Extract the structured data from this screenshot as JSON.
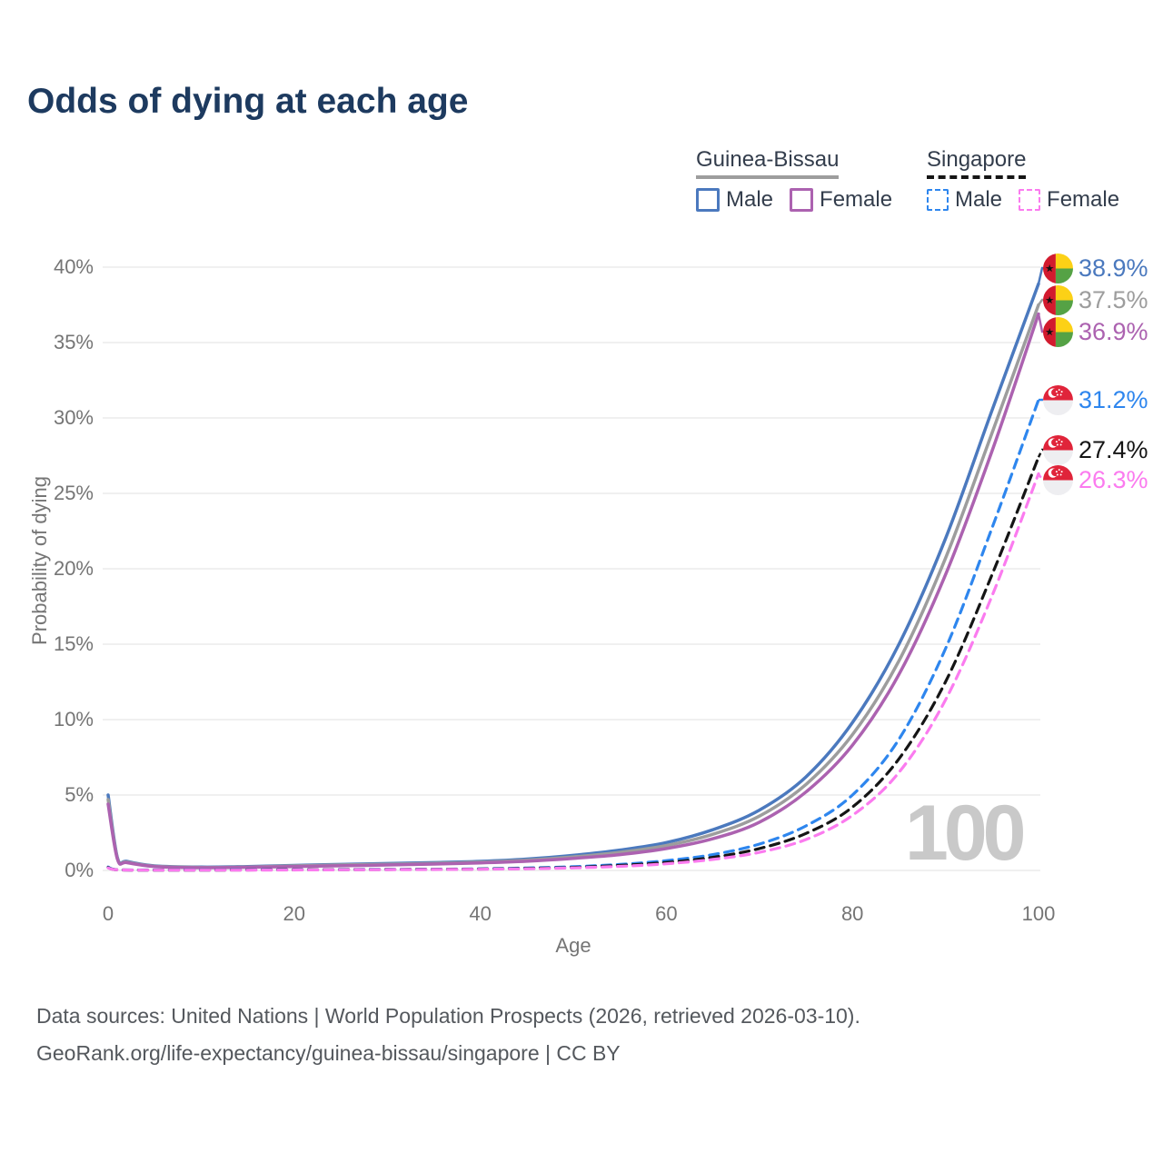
{
  "title": "Odds of dying at each age",
  "watermark": "100",
  "legend": {
    "groups": [
      {
        "label": "Guinea-Bissau",
        "style": "solid",
        "color": "#9d9d9d"
      },
      {
        "label": "Singapore",
        "style": "dashed",
        "color": "#151515"
      }
    ],
    "items": [
      {
        "label": "Male",
        "group": "Guinea-Bissau",
        "style": "solid",
        "color": "#4b79be"
      },
      {
        "label": "Female",
        "group": "Guinea-Bissau",
        "style": "solid",
        "color": "#ac62b0"
      },
      {
        "label": "Male",
        "group": "Singapore",
        "style": "dashed",
        "color": "#2e86ee"
      },
      {
        "label": "Female",
        "group": "Singapore",
        "style": "dashed",
        "color": "#fb7bef"
      }
    ]
  },
  "y_axis": {
    "title": "Probability of dying",
    "tick_labels": [
      "0%",
      "5%",
      "10%",
      "15%",
      "20%",
      "25%",
      "30%",
      "35%",
      "40%"
    ]
  },
  "x_axis": {
    "title": "Age",
    "tick_labels": [
      "0",
      "20",
      "40",
      "60",
      "80",
      "100"
    ]
  },
  "footer": {
    "line1": "Data sources: United Nations | World Population Prospects (2026, retrieved 2026-03-10).",
    "line2": "GeoRank.org/life-expectancy/guinea-bissau/singapore | CC BY"
  },
  "chart_data": {
    "type": "line",
    "title": "Odds of dying at each age",
    "xlabel": "Age",
    "ylabel": "Probability of dying",
    "xlim": [
      0,
      100
    ],
    "ylim_pct": [
      0,
      40
    ],
    "x_ticks": [
      0,
      20,
      40,
      60,
      80,
      100
    ],
    "y_ticks_pct": [
      0,
      5,
      10,
      15,
      20,
      25,
      30,
      35,
      40
    ],
    "grid": "horizontal-only",
    "legend_position": "top-right",
    "series": [
      {
        "id": "gb_male",
        "name": "Guinea-Bissau Male",
        "country": "Guinea-Bissau",
        "sex": "male",
        "style": "solid",
        "color": "#4b79be",
        "end_label": "38.9%",
        "end_value_pct": 38.9,
        "flag": "guinea-bissau-flag-icon",
        "points_age_pct": [
          [
            0,
            5.0
          ],
          [
            1,
            0.85
          ],
          [
            2,
            0.6
          ],
          [
            5,
            0.3
          ],
          [
            10,
            0.22
          ],
          [
            15,
            0.26
          ],
          [
            20,
            0.33
          ],
          [
            25,
            0.4
          ],
          [
            30,
            0.46
          ],
          [
            35,
            0.52
          ],
          [
            40,
            0.6
          ],
          [
            45,
            0.75
          ],
          [
            50,
            1.0
          ],
          [
            55,
            1.35
          ],
          [
            60,
            1.85
          ],
          [
            65,
            2.7
          ],
          [
            70,
            4.0
          ],
          [
            75,
            6.2
          ],
          [
            80,
            9.8
          ],
          [
            85,
            15.0
          ],
          [
            90,
            22.0
          ],
          [
            95,
            30.5
          ],
          [
            100,
            38.9
          ]
        ]
      },
      {
        "id": "gb_total",
        "name": "Guinea-Bissau",
        "country": "Guinea-Bissau",
        "sex": "both",
        "style": "solid",
        "color": "#9d9d9d",
        "end_label": "37.5%",
        "end_value_pct": 37.5,
        "flag": "guinea-bissau-flag-icon",
        "points_age_pct": [
          [
            0,
            4.7
          ],
          [
            1,
            0.8
          ],
          [
            2,
            0.56
          ],
          [
            5,
            0.28
          ],
          [
            10,
            0.2
          ],
          [
            15,
            0.23
          ],
          [
            20,
            0.3
          ],
          [
            25,
            0.36
          ],
          [
            30,
            0.41
          ],
          [
            35,
            0.47
          ],
          [
            40,
            0.55
          ],
          [
            45,
            0.68
          ],
          [
            50,
            0.9
          ],
          [
            55,
            1.2
          ],
          [
            60,
            1.65
          ],
          [
            65,
            2.4
          ],
          [
            70,
            3.6
          ],
          [
            75,
            5.7
          ],
          [
            80,
            9.0
          ],
          [
            85,
            13.9
          ],
          [
            90,
            20.7
          ],
          [
            95,
            29.0
          ],
          [
            100,
            37.5
          ]
        ]
      },
      {
        "id": "gb_female",
        "name": "Guinea-Bissau Female",
        "country": "Guinea-Bissau",
        "sex": "female",
        "style": "solid",
        "color": "#ac62b0",
        "end_label": "36.9%",
        "end_value_pct": 36.9,
        "flag": "guinea-bissau-flag-icon",
        "points_age_pct": [
          [
            0,
            4.4
          ],
          [
            1,
            0.75
          ],
          [
            2,
            0.52
          ],
          [
            5,
            0.26
          ],
          [
            10,
            0.18
          ],
          [
            15,
            0.21
          ],
          [
            20,
            0.26
          ],
          [
            25,
            0.31
          ],
          [
            30,
            0.36
          ],
          [
            35,
            0.42
          ],
          [
            40,
            0.5
          ],
          [
            45,
            0.61
          ],
          [
            50,
            0.8
          ],
          [
            55,
            1.05
          ],
          [
            60,
            1.45
          ],
          [
            65,
            2.1
          ],
          [
            70,
            3.2
          ],
          [
            75,
            5.2
          ],
          [
            80,
            8.3
          ],
          [
            85,
            13.0
          ],
          [
            90,
            19.6
          ],
          [
            95,
            27.8
          ],
          [
            100,
            36.9
          ]
        ]
      },
      {
        "id": "sg_male",
        "name": "Singapore Male",
        "country": "Singapore",
        "sex": "male",
        "style": "dashed",
        "color": "#2e86ee",
        "end_label": "31.2%",
        "end_value_pct": 31.2,
        "flag": "singapore-flag-icon",
        "points_age_pct": [
          [
            0,
            0.22
          ],
          [
            1,
            0.05
          ],
          [
            5,
            0.03
          ],
          [
            10,
            0.03
          ],
          [
            15,
            0.04
          ],
          [
            20,
            0.05
          ],
          [
            25,
            0.06
          ],
          [
            30,
            0.07
          ],
          [
            35,
            0.08
          ],
          [
            40,
            0.11
          ],
          [
            45,
            0.16
          ],
          [
            50,
            0.25
          ],
          [
            55,
            0.4
          ],
          [
            60,
            0.65
          ],
          [
            65,
            1.05
          ],
          [
            70,
            1.75
          ],
          [
            75,
            2.95
          ],
          [
            80,
            5.0
          ],
          [
            85,
            8.7
          ],
          [
            90,
            14.7
          ],
          [
            95,
            22.7
          ],
          [
            100,
            31.2
          ]
        ]
      },
      {
        "id": "sg_total",
        "name": "Singapore",
        "country": "Singapore",
        "sex": "both",
        "style": "dashed",
        "color": "#151515",
        "end_label": "27.4%",
        "end_value_pct": 27.4,
        "flag": "singapore-flag-icon",
        "points_age_pct": [
          [
            0,
            0.19
          ],
          [
            1,
            0.04
          ],
          [
            5,
            0.02
          ],
          [
            10,
            0.02
          ],
          [
            15,
            0.03
          ],
          [
            20,
            0.04
          ],
          [
            25,
            0.05
          ],
          [
            30,
            0.06
          ],
          [
            35,
            0.07
          ],
          [
            40,
            0.09
          ],
          [
            45,
            0.13
          ],
          [
            50,
            0.2
          ],
          [
            55,
            0.33
          ],
          [
            60,
            0.53
          ],
          [
            65,
            0.87
          ],
          [
            70,
            1.45
          ],
          [
            75,
            2.45
          ],
          [
            80,
            4.2
          ],
          [
            85,
            7.4
          ],
          [
            90,
            12.5
          ],
          [
            95,
            19.6
          ],
          [
            100,
            27.4
          ]
        ]
      },
      {
        "id": "sg_female",
        "name": "Singapore Female",
        "country": "Singapore",
        "sex": "female",
        "style": "dashed",
        "color": "#fb7bef",
        "end_label": "26.3%",
        "end_value_pct": 26.3,
        "flag": "singapore-flag-icon",
        "points_age_pct": [
          [
            0,
            0.17
          ],
          [
            1,
            0.04
          ],
          [
            5,
            0.02
          ],
          [
            10,
            0.02
          ],
          [
            15,
            0.02
          ],
          [
            20,
            0.03
          ],
          [
            25,
            0.04
          ],
          [
            30,
            0.05
          ],
          [
            35,
            0.06
          ],
          [
            40,
            0.08
          ],
          [
            45,
            0.11
          ],
          [
            50,
            0.17
          ],
          [
            55,
            0.27
          ],
          [
            60,
            0.44
          ],
          [
            65,
            0.73
          ],
          [
            70,
            1.2
          ],
          [
            75,
            2.05
          ],
          [
            80,
            3.65
          ],
          [
            85,
            6.5
          ],
          [
            90,
            11.3
          ],
          [
            95,
            18.2
          ],
          [
            100,
            26.3
          ]
        ]
      }
    ]
  }
}
